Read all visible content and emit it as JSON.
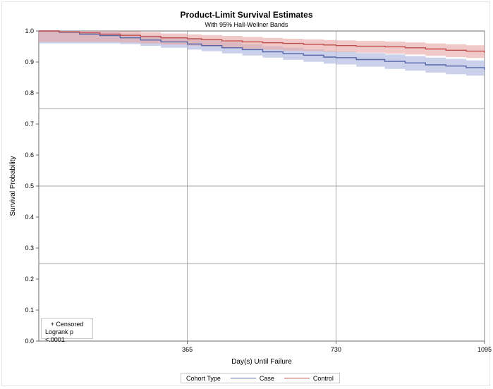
{
  "chart_data": {
    "type": "line",
    "title": "Product-Limit Survival Estimates",
    "subtitle": "With 95% Hall-Wellner Bands",
    "xlabel": "Day(s) Until Failure",
    "ylabel": "Survival Probability",
    "xlim": [
      0,
      1095
    ],
    "ylim": [
      0,
      1
    ],
    "x_ticks": [
      365,
      730,
      1095
    ],
    "y_ticks": [
      0.0,
      0.1,
      0.2,
      0.3,
      0.4,
      0.5,
      0.6,
      0.7,
      0.8,
      0.9,
      1.0
    ],
    "y_tick_labels": [
      "0.0",
      "0.1",
      "0.2",
      "0.3",
      "0.4",
      "0.5",
      "0.6",
      "0.7",
      "0.8",
      "0.9",
      "1.0"
    ],
    "grid": true,
    "legend_title": "Cohort Type",
    "legend_position": "bottom",
    "inset_notes": [
      "+ Censored",
      "Logrank p <.0001"
    ],
    "series": [
      {
        "name": "Case",
        "color": "#5566aa",
        "band_color": "#a9b3dc",
        "x": [
          0,
          50,
          100,
          150,
          200,
          250,
          300,
          365,
          400,
          450,
          500,
          550,
          600,
          650,
          700,
          730,
          780,
          850,
          900,
          950,
          1000,
          1050,
          1095
        ],
        "y": [
          1.0,
          0.996,
          0.99,
          0.985,
          0.978,
          0.971,
          0.965,
          0.958,
          0.953,
          0.946,
          0.94,
          0.933,
          0.927,
          0.922,
          0.916,
          0.914,
          0.908,
          0.902,
          0.897,
          0.891,
          0.887,
          0.882,
          0.875
        ],
        "lower": [
          0.96,
          0.96,
          0.96,
          0.96,
          0.958,
          0.952,
          0.946,
          0.94,
          0.935,
          0.928,
          0.921,
          0.914,
          0.907,
          0.901,
          0.895,
          0.892,
          0.885,
          0.878,
          0.872,
          0.866,
          0.861,
          0.856,
          0.848
        ],
        "upper": [
          1.0,
          1.0,
          1.0,
          0.998,
          0.992,
          0.986,
          0.981,
          0.975,
          0.97,
          0.963,
          0.957,
          0.951,
          0.946,
          0.941,
          0.936,
          0.934,
          0.929,
          0.924,
          0.919,
          0.914,
          0.91,
          0.905,
          0.9
        ]
      },
      {
        "name": "Control",
        "color": "#c0504d",
        "band_color": "#e6a5a3",
        "x": [
          0,
          50,
          100,
          150,
          200,
          250,
          300,
          365,
          400,
          450,
          500,
          550,
          600,
          650,
          700,
          730,
          780,
          850,
          900,
          950,
          1000,
          1050,
          1095
        ],
        "y": [
          1.0,
          0.997,
          0.994,
          0.99,
          0.986,
          0.982,
          0.978,
          0.975,
          0.972,
          0.968,
          0.965,
          0.962,
          0.96,
          0.957,
          0.955,
          0.953,
          0.951,
          0.949,
          0.946,
          0.942,
          0.938,
          0.935,
          0.93
        ],
        "lower": [
          0.965,
          0.965,
          0.965,
          0.965,
          0.963,
          0.96,
          0.956,
          0.953,
          0.95,
          0.946,
          0.943,
          0.94,
          0.937,
          0.935,
          0.933,
          0.932,
          0.93,
          0.927,
          0.924,
          0.92,
          0.916,
          0.913,
          0.917
        ],
        "upper": [
          1.0,
          1.0,
          1.0,
          1.0,
          0.999,
          0.996,
          0.992,
          0.989,
          0.987,
          0.984,
          0.981,
          0.978,
          0.975,
          0.973,
          0.971,
          0.97,
          0.968,
          0.966,
          0.963,
          0.96,
          0.957,
          0.954,
          0.95
        ]
      }
    ]
  }
}
